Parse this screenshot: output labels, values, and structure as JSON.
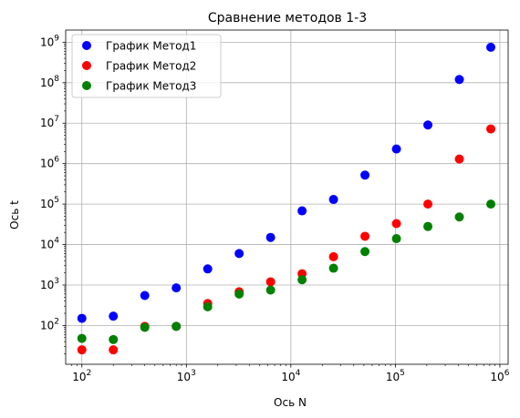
{
  "chart_data": {
    "type": "scatter",
    "title": "Сравнение методов 1-3",
    "xlabel": "Ось N",
    "ylabel": "Ось t",
    "xscale": "log",
    "yscale": "log",
    "xlim": [
      70,
      1200000
    ],
    "ylim": [
      11,
      2000000000
    ],
    "xticks": [
      {
        "value": 100,
        "base": "10",
        "exp": "2"
      },
      {
        "value": 1000,
        "base": "10",
        "exp": "3"
      },
      {
        "value": 10000,
        "base": "10",
        "exp": "4"
      },
      {
        "value": 100000,
        "base": "10",
        "exp": "5"
      },
      {
        "value": 1000000,
        "base": "10",
        "exp": "6"
      }
    ],
    "yticks": [
      {
        "value": 100,
        "base": "10",
        "exp": "2"
      },
      {
        "value": 1000,
        "base": "10",
        "exp": "3"
      },
      {
        "value": 10000,
        "base": "10",
        "exp": "4"
      },
      {
        "value": 100000,
        "base": "10",
        "exp": "5"
      },
      {
        "value": 1000000,
        "base": "10",
        "exp": "6"
      },
      {
        "value": 10000000,
        "base": "10",
        "exp": "7"
      },
      {
        "value": 100000000,
        "base": "10",
        "exp": "8"
      },
      {
        "value": 1000000000,
        "base": "10",
        "exp": "9"
      }
    ],
    "grid": true,
    "legend_position": "top-left",
    "x": [
      100,
      200,
      400,
      800,
      1600,
      3200,
      6400,
      12800,
      25600,
      51200,
      102400,
      204800,
      409600,
      819200
    ],
    "series": [
      {
        "name": "График Метод1",
        "color": "#0000ff",
        "values": [
          150,
          170,
          550,
          850,
          2500,
          6000,
          15000,
          68000,
          130000,
          520000,
          2300000,
          9000000,
          120000000,
          750000000
        ]
      },
      {
        "name": "График Метод2",
        "color": "#ff0000",
        "values": [
          25,
          25,
          95,
          95,
          350,
          680,
          1200,
          1900,
          5000,
          16000,
          33000,
          100000,
          1300000,
          7200000
        ]
      },
      {
        "name": "График Метод3",
        "color": "#008000",
        "values": [
          48,
          45,
          90,
          95,
          290,
          600,
          750,
          1350,
          2600,
          6700,
          14000,
          28000,
          48000,
          100000
        ]
      }
    ]
  }
}
